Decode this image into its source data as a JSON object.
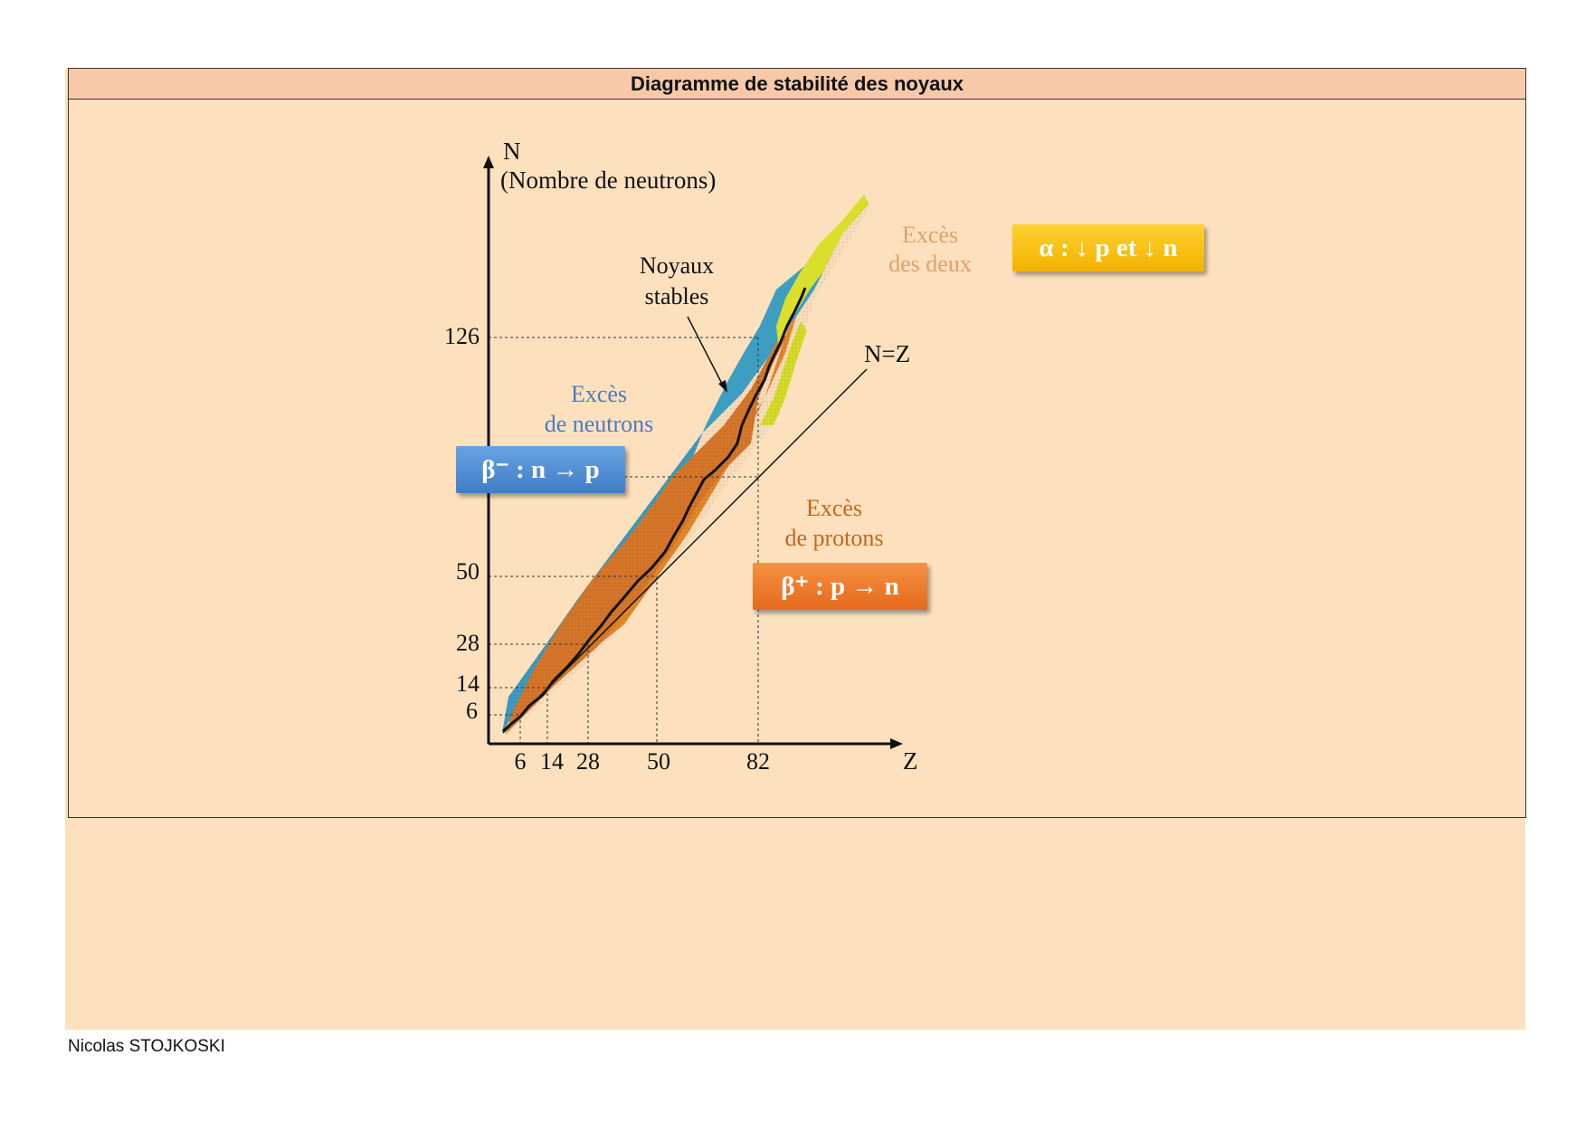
{
  "title": "Diagramme de stabilité des noyaux",
  "author": "Nicolas STOJKOSKI",
  "axes": {
    "y_label_line1": "N",
    "y_label_line2": "(Nombre de neutrons)",
    "x_label": "Z",
    "x_ticks": [
      "6",
      "14",
      "28",
      "50",
      "82"
    ],
    "y_ticks": [
      "126",
      "50",
      "28",
      "14",
      "6"
    ]
  },
  "labels": {
    "stable_line1": "Noyaux",
    "stable_line2": "stables",
    "nz": "N=Z",
    "excess_both_1": "Excès",
    "excess_both_2": "des deux",
    "excess_neutrons_1": "Excès",
    "excess_neutrons_2": "de neutrons",
    "excess_protons_1": "Excès",
    "excess_protons_2": "de protons"
  },
  "tags": {
    "alpha": "α : ↓ p et ↓ n",
    "beta_minus": "β⁻ : n → p",
    "beta_plus": "β⁺ : p → n"
  },
  "colors": {
    "panel": "#fde1be",
    "title_bar": "#f7c9a8",
    "beta_minus": "#3d9ec2",
    "beta_plus": "#e8892a",
    "alpha": "#d9df2a",
    "excess_both_text": "#e0a070",
    "excess_neutrons_text": "#4a7cc4",
    "excess_protons_text": "#c7651e"
  }
}
